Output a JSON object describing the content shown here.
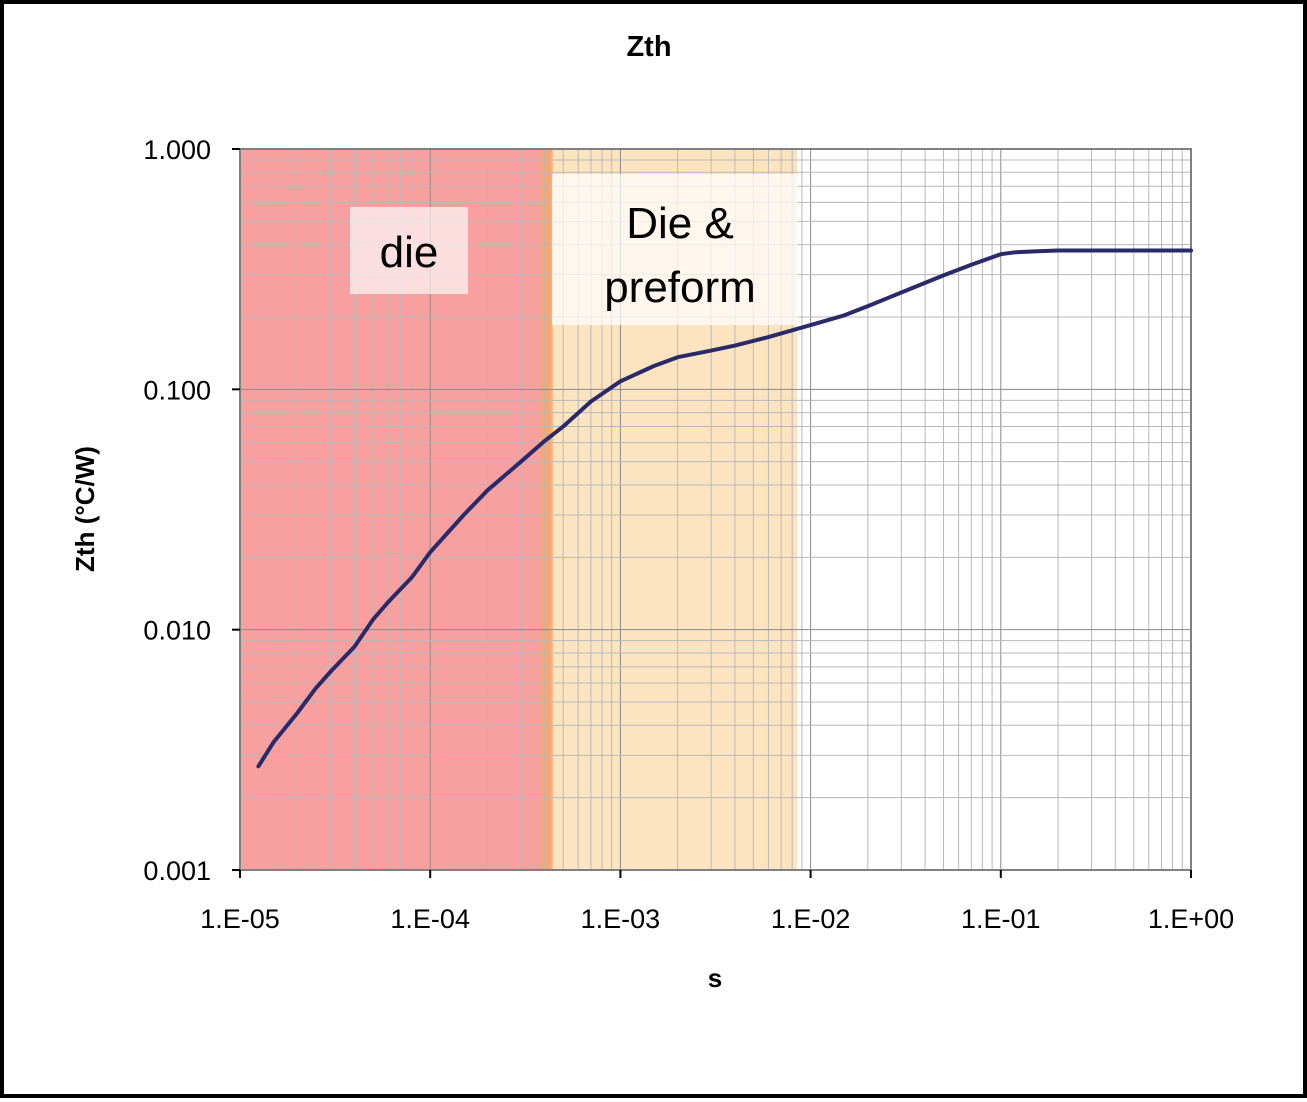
{
  "chart_data": {
    "type": "line",
    "title": "Zth",
    "xlabel": "s",
    "ylabel": "Zth (°C/W)",
    "x_scale": "log",
    "y_scale": "log",
    "xlim": [
      1e-05,
      1
    ],
    "ylim": [
      0.001,
      1
    ],
    "x_ticks": [
      "1.E-05",
      "1.E-04",
      "1.E-03",
      "1.E-02",
      "1.E-01",
      "1.E+00"
    ],
    "y_ticks": [
      "0.001",
      "0.010",
      "0.100",
      "1.000"
    ],
    "grid": true,
    "legend": "none",
    "regions": [
      {
        "label": "die",
        "x_start": 1e-05,
        "x_end": 0.00043,
        "color": "#f8a0a0"
      },
      {
        "label_lines": [
          "Die &",
          "preform"
        ],
        "x_start": 0.00043,
        "x_end": 0.0085,
        "color": "#fde4c1"
      }
    ],
    "series": [
      {
        "color": "#2a2a6a",
        "points": [
          [
            1.25e-05,
            0.0027
          ],
          [
            1.5e-05,
            0.0034
          ],
          [
            2e-05,
            0.0045
          ],
          [
            2.5e-05,
            0.0057
          ],
          [
            3e-05,
            0.0067
          ],
          [
            4e-05,
            0.0085
          ],
          [
            5e-05,
            0.011
          ],
          [
            6e-05,
            0.013
          ],
          [
            8e-05,
            0.0165
          ],
          [
            0.0001,
            0.021
          ],
          [
            0.00015,
            0.03
          ],
          [
            0.0002,
            0.038
          ],
          [
            0.0003,
            0.05
          ],
          [
            0.0004,
            0.061
          ],
          [
            0.0005,
            0.07
          ],
          [
            0.0007,
            0.089
          ],
          [
            0.001,
            0.108
          ],
          [
            0.0015,
            0.125
          ],
          [
            0.002,
            0.136
          ],
          [
            0.003,
            0.145
          ],
          [
            0.004,
            0.152
          ],
          [
            0.006,
            0.165
          ],
          [
            0.008,
            0.176
          ],
          [
            0.01,
            0.185
          ],
          [
            0.015,
            0.203
          ],
          [
            0.02,
            0.222
          ],
          [
            0.03,
            0.253
          ],
          [
            0.05,
            0.298
          ],
          [
            0.07,
            0.33
          ],
          [
            0.1,
            0.365
          ],
          [
            0.12,
            0.372
          ],
          [
            0.15,
            0.375
          ],
          [
            0.2,
            0.378
          ],
          [
            0.5,
            0.378
          ],
          [
            1,
            0.378
          ]
        ]
      }
    ]
  }
}
